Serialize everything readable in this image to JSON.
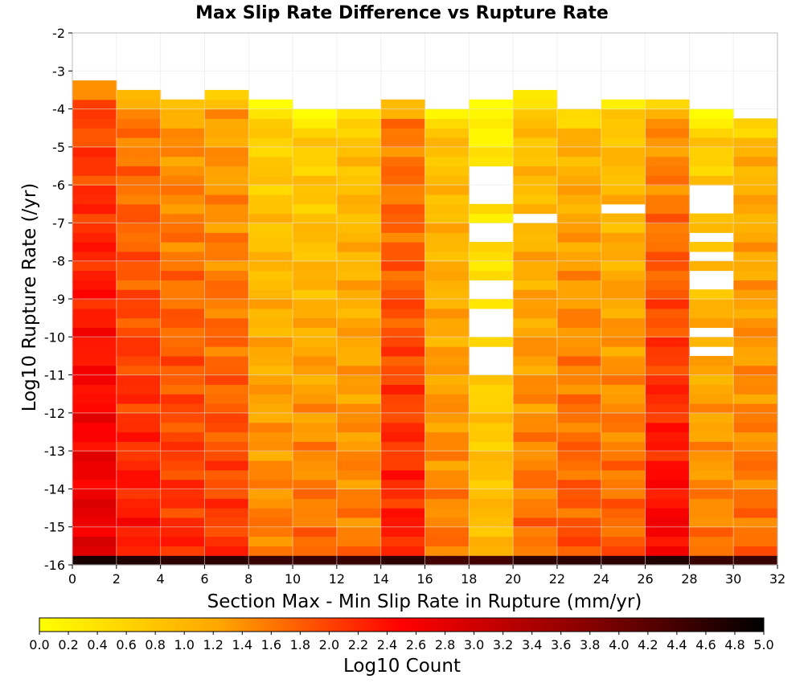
{
  "chart_data": {
    "type": "heatmap",
    "title": "Max Slip Rate Difference vs Rupture Rate",
    "xlabel": "Section Max - Min Slip Rate in Rupture (mm/yr)",
    "ylabel": "Log10 Rupture Rate (/yr)",
    "colorbar_label": "Log10 Count",
    "xlim": [
      0,
      32
    ],
    "ylim": [
      -16,
      -2
    ],
    "x_ticks": [
      "0",
      "2",
      "4",
      "6",
      "8",
      "10",
      "12",
      "14",
      "16",
      "18",
      "20",
      "22",
      "24",
      "26",
      "28",
      "30",
      "32"
    ],
    "y_ticks": [
      "-2",
      "-3",
      "-4",
      "-5",
      "-6",
      "-7",
      "-8",
      "-9",
      "-10",
      "-11",
      "-12",
      "-13",
      "-14",
      "-15",
      "-16"
    ],
    "colorbar_ticks": [
      "0.0",
      "0.2",
      "0.4",
      "0.6",
      "0.8",
      "1.0",
      "1.2",
      "1.4",
      "1.6",
      "1.8",
      "2.0",
      "2.2",
      "2.4",
      "2.6",
      "2.8",
      "3.0",
      "3.2",
      "3.4",
      "3.6",
      "3.8",
      "4.0",
      "4.2",
      "4.4",
      "4.6",
      "4.8",
      "5.0"
    ],
    "colorbar_range": [
      0,
      5
    ],
    "colormap": [
      "#ffff00",
      "#ffa500",
      "#ff0000",
      "#8b0000",
      "#000000"
    ],
    "x_bin_width": 2,
    "y_bin_width": 0.25,
    "columns": [
      {
        "x": [
          0,
          2
        ],
        "top": -3.25,
        "base": [
          1.9,
          2.8
        ],
        "bottom_row": 4.8,
        "gaps": []
      },
      {
        "x": [
          2,
          4
        ],
        "top": -3.5,
        "base": [
          1.5,
          2.4
        ],
        "bottom_row": 4.7,
        "gaps": []
      },
      {
        "x": [
          4,
          6
        ],
        "top": -3.75,
        "base": [
          1.3,
          2.2
        ],
        "bottom_row": 4.6,
        "gaps": []
      },
      {
        "x": [
          6,
          8
        ],
        "top": -3.5,
        "base": [
          1.2,
          2.1
        ],
        "bottom_row": 4.6,
        "gaps": []
      },
      {
        "x": [
          8,
          10
        ],
        "top": -3.75,
        "base": [
          0.6,
          1.6
        ],
        "bottom_row": 4.5,
        "gaps": []
      },
      {
        "x": [
          10,
          12
        ],
        "top": -4.0,
        "base": [
          0.6,
          1.7
        ],
        "bottom_row": 4.5,
        "gaps": []
      },
      {
        "x": [
          12,
          14
        ],
        "top": -4.0,
        "base": [
          0.8,
          1.6
        ],
        "bottom_row": 4.5,
        "gaps": []
      },
      {
        "x": [
          14,
          16
        ],
        "top": -3.75,
        "base": [
          1.5,
          2.3
        ],
        "bottom_row": 4.6,
        "gaps": []
      },
      {
        "x": [
          16,
          18
        ],
        "top": -4.0,
        "base": [
          0.8,
          1.6
        ],
        "bottom_row": 4.4,
        "gaps": []
      },
      {
        "x": [
          18,
          20
        ],
        "top": -3.75,
        "base": [
          0.2,
          1.0
        ],
        "bottom_row": 4.4,
        "gaps": [
          [
            -6.5,
            -5.5
          ],
          [
            -7.5,
            -7.0
          ],
          [
            -9.0,
            -8.5
          ],
          [
            -10.0,
            -9.25
          ],
          [
            -11.0,
            -10.25
          ]
        ]
      },
      {
        "x": [
          20,
          22
        ],
        "top": -3.5,
        "base": [
          0.8,
          1.7
        ],
        "bottom_row": 4.6,
        "gaps": [
          [
            -7.0,
            -6.75
          ]
        ]
      },
      {
        "x": [
          22,
          24
        ],
        "top": -4.0,
        "base": [
          1.0,
          1.9
        ],
        "bottom_row": 4.6,
        "gaps": []
      },
      {
        "x": [
          24,
          26
        ],
        "top": -3.75,
        "base": [
          0.8,
          1.8
        ],
        "bottom_row": 4.6,
        "gaps": [
          [
            -6.75,
            -6.5
          ]
        ]
      },
      {
        "x": [
          26,
          28
        ],
        "top": -3.75,
        "base": [
          1.3,
          2.6
        ],
        "bottom_row": 4.7,
        "gaps": []
      },
      {
        "x": [
          28,
          30
        ],
        "top": -4.0,
        "base": [
          0.6,
          1.6
        ],
        "bottom_row": 4.5,
        "gaps": [
          [
            -6.75,
            -6.0
          ],
          [
            -7.5,
            -7.25
          ],
          [
            -8.0,
            -7.75
          ],
          [
            -8.75,
            -8.25
          ],
          [
            -10.0,
            -9.75
          ],
          [
            -10.5,
            -10.25
          ]
        ]
      },
      {
        "x": [
          30,
          32
        ],
        "top": -4.25,
        "base": [
          1.0,
          1.7
        ],
        "bottom_row": 4.5,
        "gaps": []
      }
    ]
  }
}
